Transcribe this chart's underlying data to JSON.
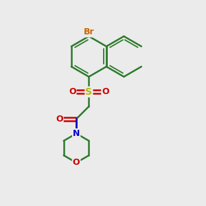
{
  "bg_color": "#ebebeb",
  "bond_color": "#2d7a2d",
  "bond_width": 1.8,
  "atom_colors": {
    "Br": "#cc6600",
    "S": "#b8b800",
    "O": "#cc0000",
    "N": "#0000cc"
  },
  "figsize": [
    3.0,
    3.0
  ],
  "dpi": 100,
  "xlim": [
    0,
    10
  ],
  "ylim": [
    0,
    10
  ]
}
